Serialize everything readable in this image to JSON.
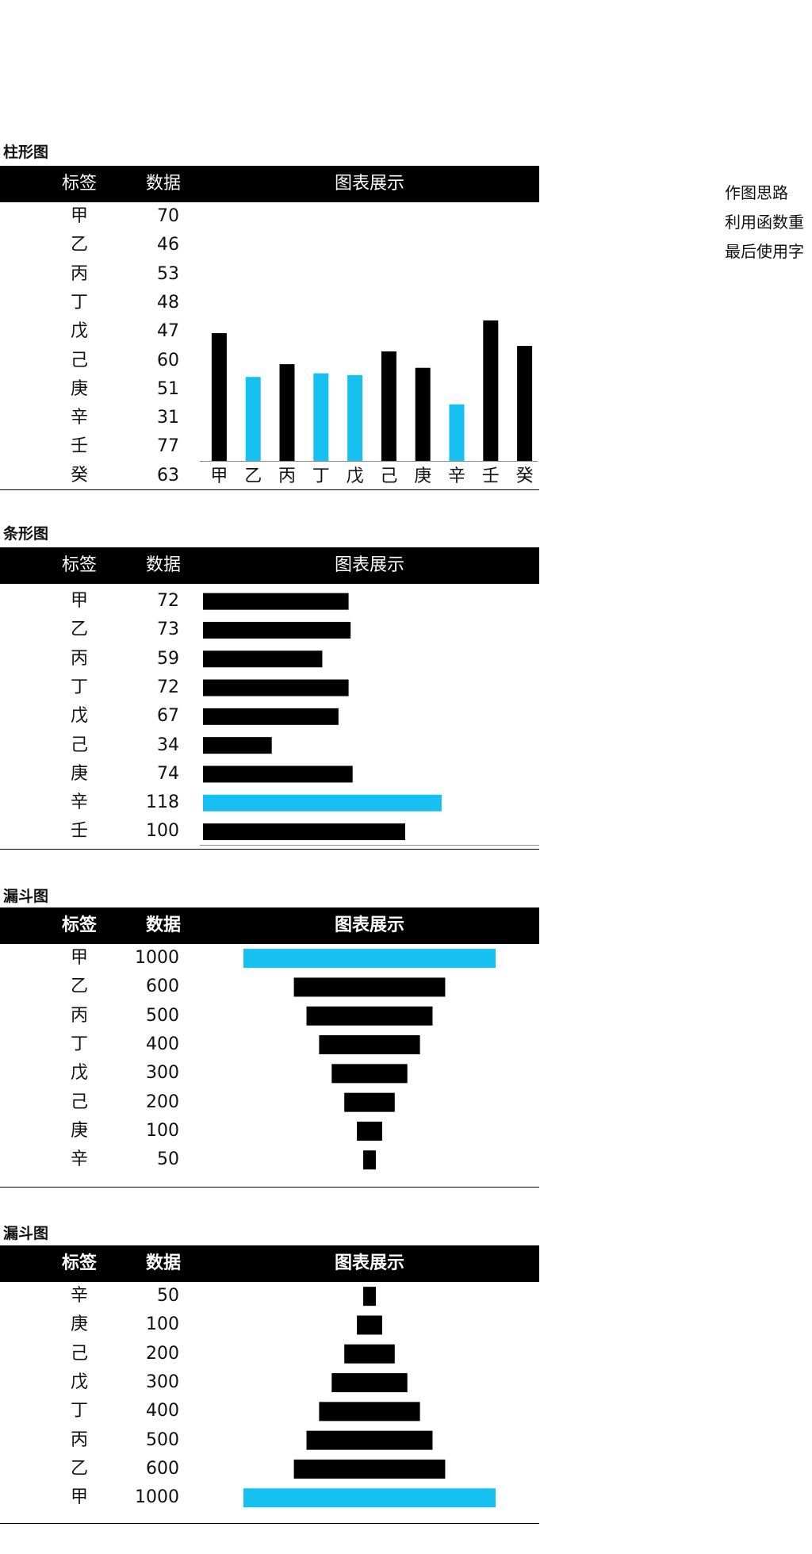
{
  "colors": {
    "bar": "#000000",
    "highlight": "#16c0f0"
  },
  "notes": [
    "作图思路",
    "利用函数重",
    "最后使用字"
  ],
  "column_header": {
    "label": "标签",
    "data": "数据",
    "chart": "图表展示"
  },
  "sections": [
    {
      "title": "柱形图"
    },
    {
      "title": "条形图"
    },
    {
      "title": "漏斗图"
    },
    {
      "title": "漏斗图"
    }
  ],
  "chart_data": [
    {
      "type": "bar",
      "orientation": "vertical",
      "categories": [
        "甲",
        "乙",
        "丙",
        "丁",
        "戊",
        "己",
        "庚",
        "辛",
        "壬",
        "癸"
      ],
      "values": [
        70,
        46,
        53,
        48,
        47,
        60,
        51,
        31,
        77,
        63
      ],
      "highlighted": [
        "乙",
        "丁",
        "戊",
        "辛"
      ],
      "ylim": [
        0,
        100
      ],
      "grid": false,
      "legend": "none"
    },
    {
      "type": "bar",
      "orientation": "horizontal",
      "categories": [
        "甲",
        "乙",
        "丙",
        "丁",
        "戊",
        "己",
        "庚",
        "辛",
        "壬"
      ],
      "values": [
        72,
        73,
        59,
        72,
        67,
        34,
        74,
        118,
        100
      ],
      "highlighted": [
        "辛"
      ],
      "xlim": [
        0,
        160
      ],
      "grid": false,
      "legend": "none"
    },
    {
      "type": "bar",
      "orientation": "funnel",
      "categories": [
        "甲",
        "乙",
        "丙",
        "丁",
        "戊",
        "己",
        "庚",
        "辛"
      ],
      "values": [
        1000,
        600,
        500,
        400,
        300,
        200,
        100,
        50
      ],
      "highlighted": [
        "甲"
      ],
      "grid": false,
      "legend": "none"
    },
    {
      "type": "bar",
      "orientation": "funnel",
      "categories": [
        "辛",
        "庚",
        "己",
        "戊",
        "丁",
        "丙",
        "乙",
        "甲"
      ],
      "values": [
        50,
        100,
        200,
        300,
        400,
        500,
        600,
        1000
      ],
      "highlighted": [
        "甲"
      ],
      "grid": false,
      "legend": "none"
    }
  ]
}
